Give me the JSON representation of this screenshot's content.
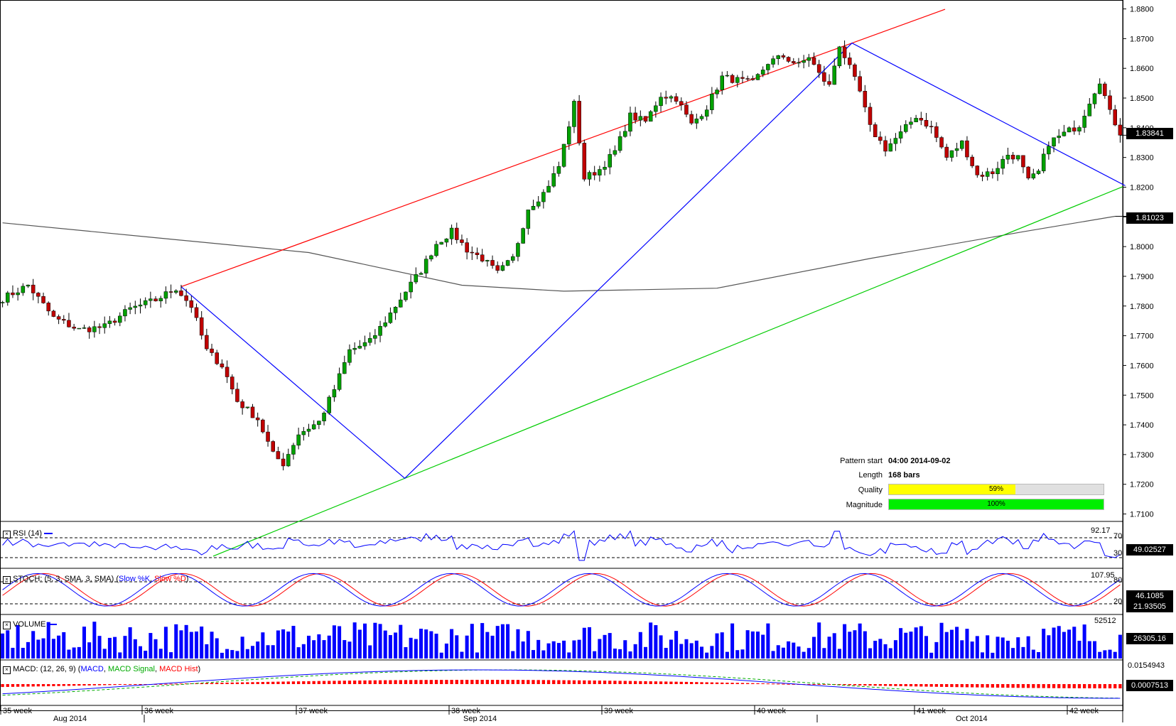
{
  "chart_data": {
    "type": "candlestick",
    "price_axis": {
      "ticks": [
        "1.8800",
        "1.8700",
        "1.8600",
        "1.8500",
        "1.8400",
        "1.8300",
        "1.8200",
        "1.8100",
        "1.8000",
        "1.7900",
        "1.7800",
        "1.7700",
        "1.7600",
        "1.7500",
        "1.7400",
        "1.7300",
        "1.7200",
        "1.7100"
      ],
      "range": [
        1.7075,
        1.883
      ],
      "current_price": "1.83841",
      "ma_value": "1.81023"
    },
    "time_axis": {
      "weeks": [
        "35 week",
        "36 week",
        "37 week",
        "38 week",
        "39 week",
        "40 week",
        "41 week",
        "42 week"
      ],
      "months": [
        "Aug 2014",
        "Sep 2014",
        "Oct 2014"
      ]
    },
    "pattern": {
      "start_label": "Pattern start",
      "start_value": "04:00 2014-09-02",
      "length_label": "Length",
      "length_value": "168 bars",
      "quality_label": "Quality",
      "quality_value": "59%",
      "quality_fraction": 0.59,
      "magnitude_label": "Magnitude",
      "magnitude_value": "100%",
      "magnitude_fraction": 1.0,
      "zigzag": [
        [
          0,
          1.7865
        ],
        [
          18,
          1.722
        ],
        [
          54,
          1.8685
        ],
        [
          76,
          1.8205
        ]
      ]
    },
    "anchors": [
      [
        0,
        1.7825
      ],
      [
        5,
        1.787
      ],
      [
        10,
        1.776
      ],
      [
        15,
        1.772
      ],
      [
        20,
        1.773
      ],
      [
        25,
        1.779
      ],
      [
        30,
        1.782
      ],
      [
        34,
        1.786
      ],
      [
        37,
        1.78
      ],
      [
        40,
        1.765
      ],
      [
        43,
        1.76
      ],
      [
        46,
        1.748
      ],
      [
        50,
        1.742
      ],
      [
        53,
        1.73
      ],
      [
        55,
        1.727
      ],
      [
        58,
        1.737
      ],
      [
        62,
        1.741
      ],
      [
        65,
        1.752
      ],
      [
        68,
        1.765
      ],
      [
        72,
        1.768
      ],
      [
        75,
        1.775
      ],
      [
        79,
        1.785
      ],
      [
        82,
        1.792
      ],
      [
        85,
        1.801
      ],
      [
        88,
        1.805
      ],
      [
        91,
        1.799
      ],
      [
        94,
        1.796
      ],
      [
        97,
        1.791
      ],
      [
        100,
        1.796
      ],
      [
        103,
        1.813
      ],
      [
        106,
        1.818
      ],
      [
        109,
        1.827
      ],
      [
        112,
        1.848
      ],
      [
        114,
        1.823
      ],
      [
        117,
        1.826
      ],
      [
        120,
        1.832
      ],
      [
        123,
        1.844
      ],
      [
        126,
        1.842
      ],
      [
        129,
        1.851
      ],
      [
        132,
        1.85
      ],
      [
        135,
        1.841
      ],
      [
        138,
        1.847
      ],
      [
        141,
        1.857
      ],
      [
        144,
        1.856
      ],
      [
        147,
        1.855
      ],
      [
        150,
        1.862
      ],
      [
        153,
        1.864
      ],
      [
        156,
        1.861
      ],
      [
        158,
        1.864
      ],
      [
        160,
        1.858
      ],
      [
        162,
        1.854
      ],
      [
        164,
        1.868
      ],
      [
        166,
        1.86
      ],
      [
        168,
        1.852
      ],
      [
        170,
        1.84
      ],
      [
        173,
        1.833
      ],
      [
        176,
        1.838
      ],
      [
        179,
        1.844
      ],
      [
        182,
        1.84
      ],
      [
        185,
        1.83
      ],
      [
        188,
        1.835
      ],
      [
        191,
        1.824
      ],
      [
        194,
        1.825
      ],
      [
        197,
        1.831
      ],
      [
        199,
        1.83
      ],
      [
        201,
        1.822
      ],
      [
        203,
        1.825
      ],
      [
        205,
        1.835
      ],
      [
        208,
        1.838
      ],
      [
        211,
        1.841
      ],
      [
        213,
        1.849
      ],
      [
        215,
        1.856
      ],
      [
        217,
        1.845
      ],
      [
        219,
        1.8384
      ]
    ],
    "ma_path": [
      [
        0,
        1.808
      ],
      [
        30,
        1.803
      ],
      [
        60,
        1.798
      ],
      [
        90,
        1.787
      ],
      [
        110,
        1.785
      ],
      [
        140,
        1.786
      ],
      [
        170,
        1.796
      ],
      [
        200,
        1.805
      ],
      [
        218,
        1.8102
      ]
    ],
    "indicators": [
      {
        "title": "RSI (14)",
        "levels": [
          "70",
          "30"
        ],
        "top_label": "92.17",
        "current": "49.02527",
        "color": "#0000ff"
      },
      {
        "title": "STOCH: (5, 3, SMA, 3, SMA)",
        "k_label": "Slow %K",
        "d_label": "Slow %D",
        "levels": [
          "80",
          "20"
        ],
        "top_label": "107.95",
        "current_k": "46.1085",
        "current_d": "21.93505"
      },
      {
        "title": "VOLUME",
        "top_label": "52512",
        "current": "26305.16"
      },
      {
        "title": "MACD: (12, 26, 9)",
        "macd_label": "MACD",
        "signal_label": "MACD Signal",
        "hist_label": "MACD Hist",
        "top_label": "0.0154943",
        "current": "0.0007513"
      }
    ]
  },
  "colors": {
    "up": "#00a000",
    "down": "#c00000",
    "zigzag": "#0000ff",
    "upper": "#ff0000",
    "lower": "#00cc00",
    "ma": "#555555",
    "quality": "#ffff00",
    "magnitude": "#00ee00",
    "badge_bg": "#000000",
    "badge_fg": "#ffffff"
  }
}
